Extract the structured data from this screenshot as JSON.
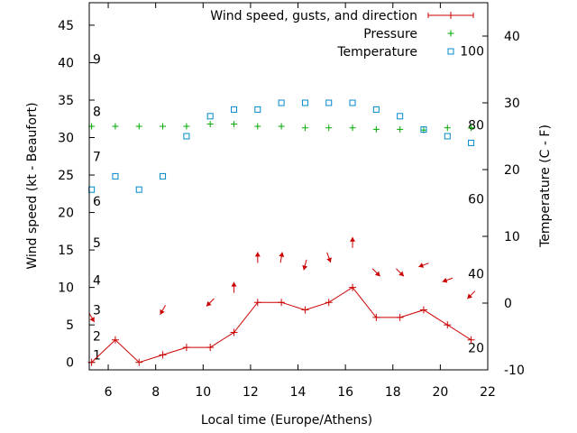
{
  "chart_data": {
    "type": "line",
    "title": "",
    "xlabel": "Local time (Europe/Athens)",
    "ylabel": "Wind speed (kt - Beaufort)",
    "y2label": "Temperature (C - F)",
    "xlim": [
      5.2,
      22
    ],
    "ylim": [
      -1,
      48
    ],
    "y2lim": [
      -10,
      45
    ],
    "xticks": [
      6,
      8,
      10,
      12,
      14,
      16,
      18,
      20,
      22
    ],
    "yticks": [
      0,
      5,
      10,
      15,
      20,
      25,
      30,
      35,
      40,
      45
    ],
    "y2ticks": [
      -10,
      0,
      10,
      20,
      30,
      40
    ],
    "beaufort_labels": [
      {
        "label": "1",
        "kt": 1
      },
      {
        "label": "2",
        "kt": 3.5
      },
      {
        "label": "3",
        "kt": 7
      },
      {
        "label": "4",
        "kt": 11
      },
      {
        "label": "5",
        "kt": 16
      },
      {
        "label": "6",
        "kt": 21.5
      },
      {
        "label": "7",
        "kt": 27.5
      },
      {
        "label": "8",
        "kt": 33.5
      },
      {
        "label": "9",
        "kt": 40.5
      }
    ],
    "fahrenheit_labels": [
      {
        "label": "20",
        "celsius": -6.7
      },
      {
        "label": "40",
        "celsius": 4.4
      },
      {
        "label": "60",
        "celsius": 15.6
      },
      {
        "label": "80",
        "celsius": 26.7
      },
      {
        "label": "100",
        "celsius": 37.8
      }
    ],
    "legend": [
      "Wind speed, gusts, and direction",
      "Pressure",
      "Temperature"
    ],
    "legend_position": "top-right",
    "colors": {
      "wind": "#cc0000",
      "pressure": "#00aa00",
      "temperature": "#0088cc"
    },
    "series": [
      {
        "name": "Wind speed, gusts, and direction",
        "x": [
          5.3,
          6.3,
          7.3,
          8.3,
          9.3,
          10.3,
          11.3,
          12.3,
          13.3,
          14.3,
          15.3,
          16.3,
          17.3,
          18.3,
          19.3,
          20.3,
          21.3
        ],
        "values": [
          0,
          3,
          0,
          1,
          2,
          2,
          4,
          8,
          8,
          7,
          8,
          10,
          6,
          6,
          7,
          5,
          3
        ],
        "direction_deg": [
          300,
          null,
          null,
          240,
          null,
          225,
          90,
          90,
          80,
          255,
          290,
          90,
          315,
          315,
          200,
          200,
          225
        ]
      },
      {
        "name": "Pressure",
        "x": [
          5.3,
          6.3,
          7.3,
          8.3,
          9.3,
          10.3,
          11.3,
          12.3,
          13.3,
          14.3,
          15.3,
          16.3,
          17.3,
          18.3,
          19.3,
          20.3,
          21.3
        ],
        "values": [
          31.5,
          31.5,
          31.5,
          31.5,
          31.5,
          31.8,
          31.8,
          31.5,
          31.5,
          31.3,
          31.3,
          31.3,
          31.1,
          31.1,
          31.0,
          31.3,
          31.3
        ]
      },
      {
        "name": "Temperature",
        "x": [
          5.3,
          6.3,
          7.3,
          8.3,
          9.3,
          10.3,
          11.3,
          12.3,
          13.3,
          14.3,
          15.3,
          16.3,
          17.3,
          18.3,
          19.3,
          20.3,
          21.3
        ],
        "values": [
          17,
          19,
          17,
          19,
          25,
          28,
          29,
          29,
          30,
          30,
          30,
          30,
          29,
          28,
          26,
          25,
          24
        ]
      }
    ]
  }
}
